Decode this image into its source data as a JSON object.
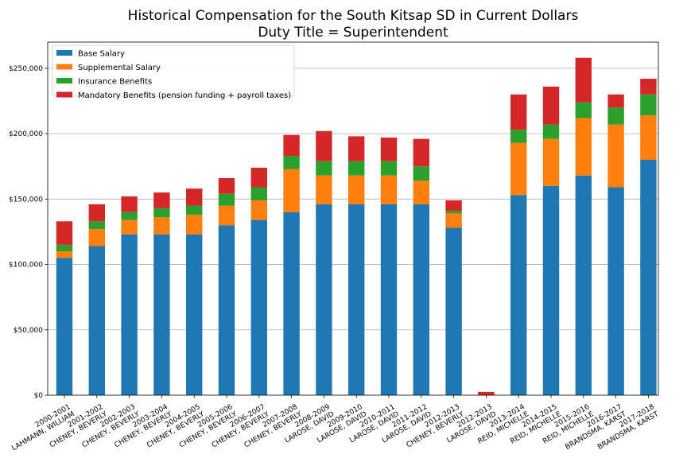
{
  "chart_data": {
    "type": "bar",
    "stacked": true,
    "title": "Historical Compensation for the South Kitsap SD in Current Dollars",
    "subtitle": "Duty Title = Superintendent",
    "xlabel": "",
    "ylabel": "",
    "ylim": [
      0,
      270000
    ],
    "yticks": [
      0,
      50000,
      100000,
      150000,
      200000,
      250000
    ],
    "ytick_labels": [
      "$0",
      "$50,000",
      "$100,000",
      "$150,000",
      "$200,000",
      "$250,000"
    ],
    "grid": "horizontal",
    "legend_position": "top-left",
    "categories": [
      "2000-2001\nLAHMANN, WILLIAM",
      "2001-2002\nCHENEY, BEVERLY",
      "2002-2003\nCHENEY, BEVERLY",
      "2003-2004\nCHENEY, BEVERLY",
      "2004-2005\nCHENEY, BEVERLY",
      "2005-2006\nCHENEY, BEVERLY",
      "2006-2007\nCHENEY, BEVERLY",
      "2007-2008\nCHENEY, BEVERLY",
      "2008-2009\nLAROSE, DAVID",
      "2009-2010\nLAROSE, DAVID",
      "2010-2011\nLAROSE, DAVID",
      "2011-2012\nLAROSE, DAVID",
      "2012-2013\nCHENEY, BEVERLY",
      "2012-2013\nLAROSE, DAVID",
      "2013-2014\nREID, MICHELLE",
      "2014-2015\nREID, MICHELLE",
      "2015-2016\nREID, MICHELLE",
      "2016-2017\nBRANDSMA, KARST",
      "2017-2018\nBRANDSMA, KARST"
    ],
    "series": [
      {
        "name": "Base Salary",
        "color": "#1f77b4",
        "values": [
          105000,
          114000,
          123000,
          123000,
          123000,
          130000,
          134000,
          140000,
          146000,
          146000,
          146000,
          146000,
          128000,
          0,
          153000,
          160000,
          168000,
          159000,
          180000
        ]
      },
      {
        "name": "Supplemental Salary",
        "color": "#ff7f0e",
        "values": [
          5000,
          13000,
          11000,
          13000,
          15000,
          15000,
          15000,
          33000,
          22000,
          22000,
          22000,
          18000,
          11000,
          0,
          40000,
          36000,
          44000,
          48000,
          34000
        ]
      },
      {
        "name": "Insurance Benefits",
        "color": "#2ca02c",
        "values": [
          5000,
          6000,
          6000,
          7000,
          7000,
          9000,
          10000,
          10000,
          11000,
          11000,
          11000,
          11000,
          2000,
          0,
          10000,
          11000,
          12000,
          13000,
          16000
        ]
      },
      {
        "name": "Mandatory Benefits (pension funding + payroll taxes)",
        "color": "#d62728",
        "values": [
          18000,
          13000,
          12000,
          12000,
          13000,
          12000,
          15000,
          16000,
          23000,
          19000,
          18000,
          21000,
          8000,
          2500,
          27000,
          29000,
          34000,
          10000,
          12000
        ]
      }
    ]
  }
}
